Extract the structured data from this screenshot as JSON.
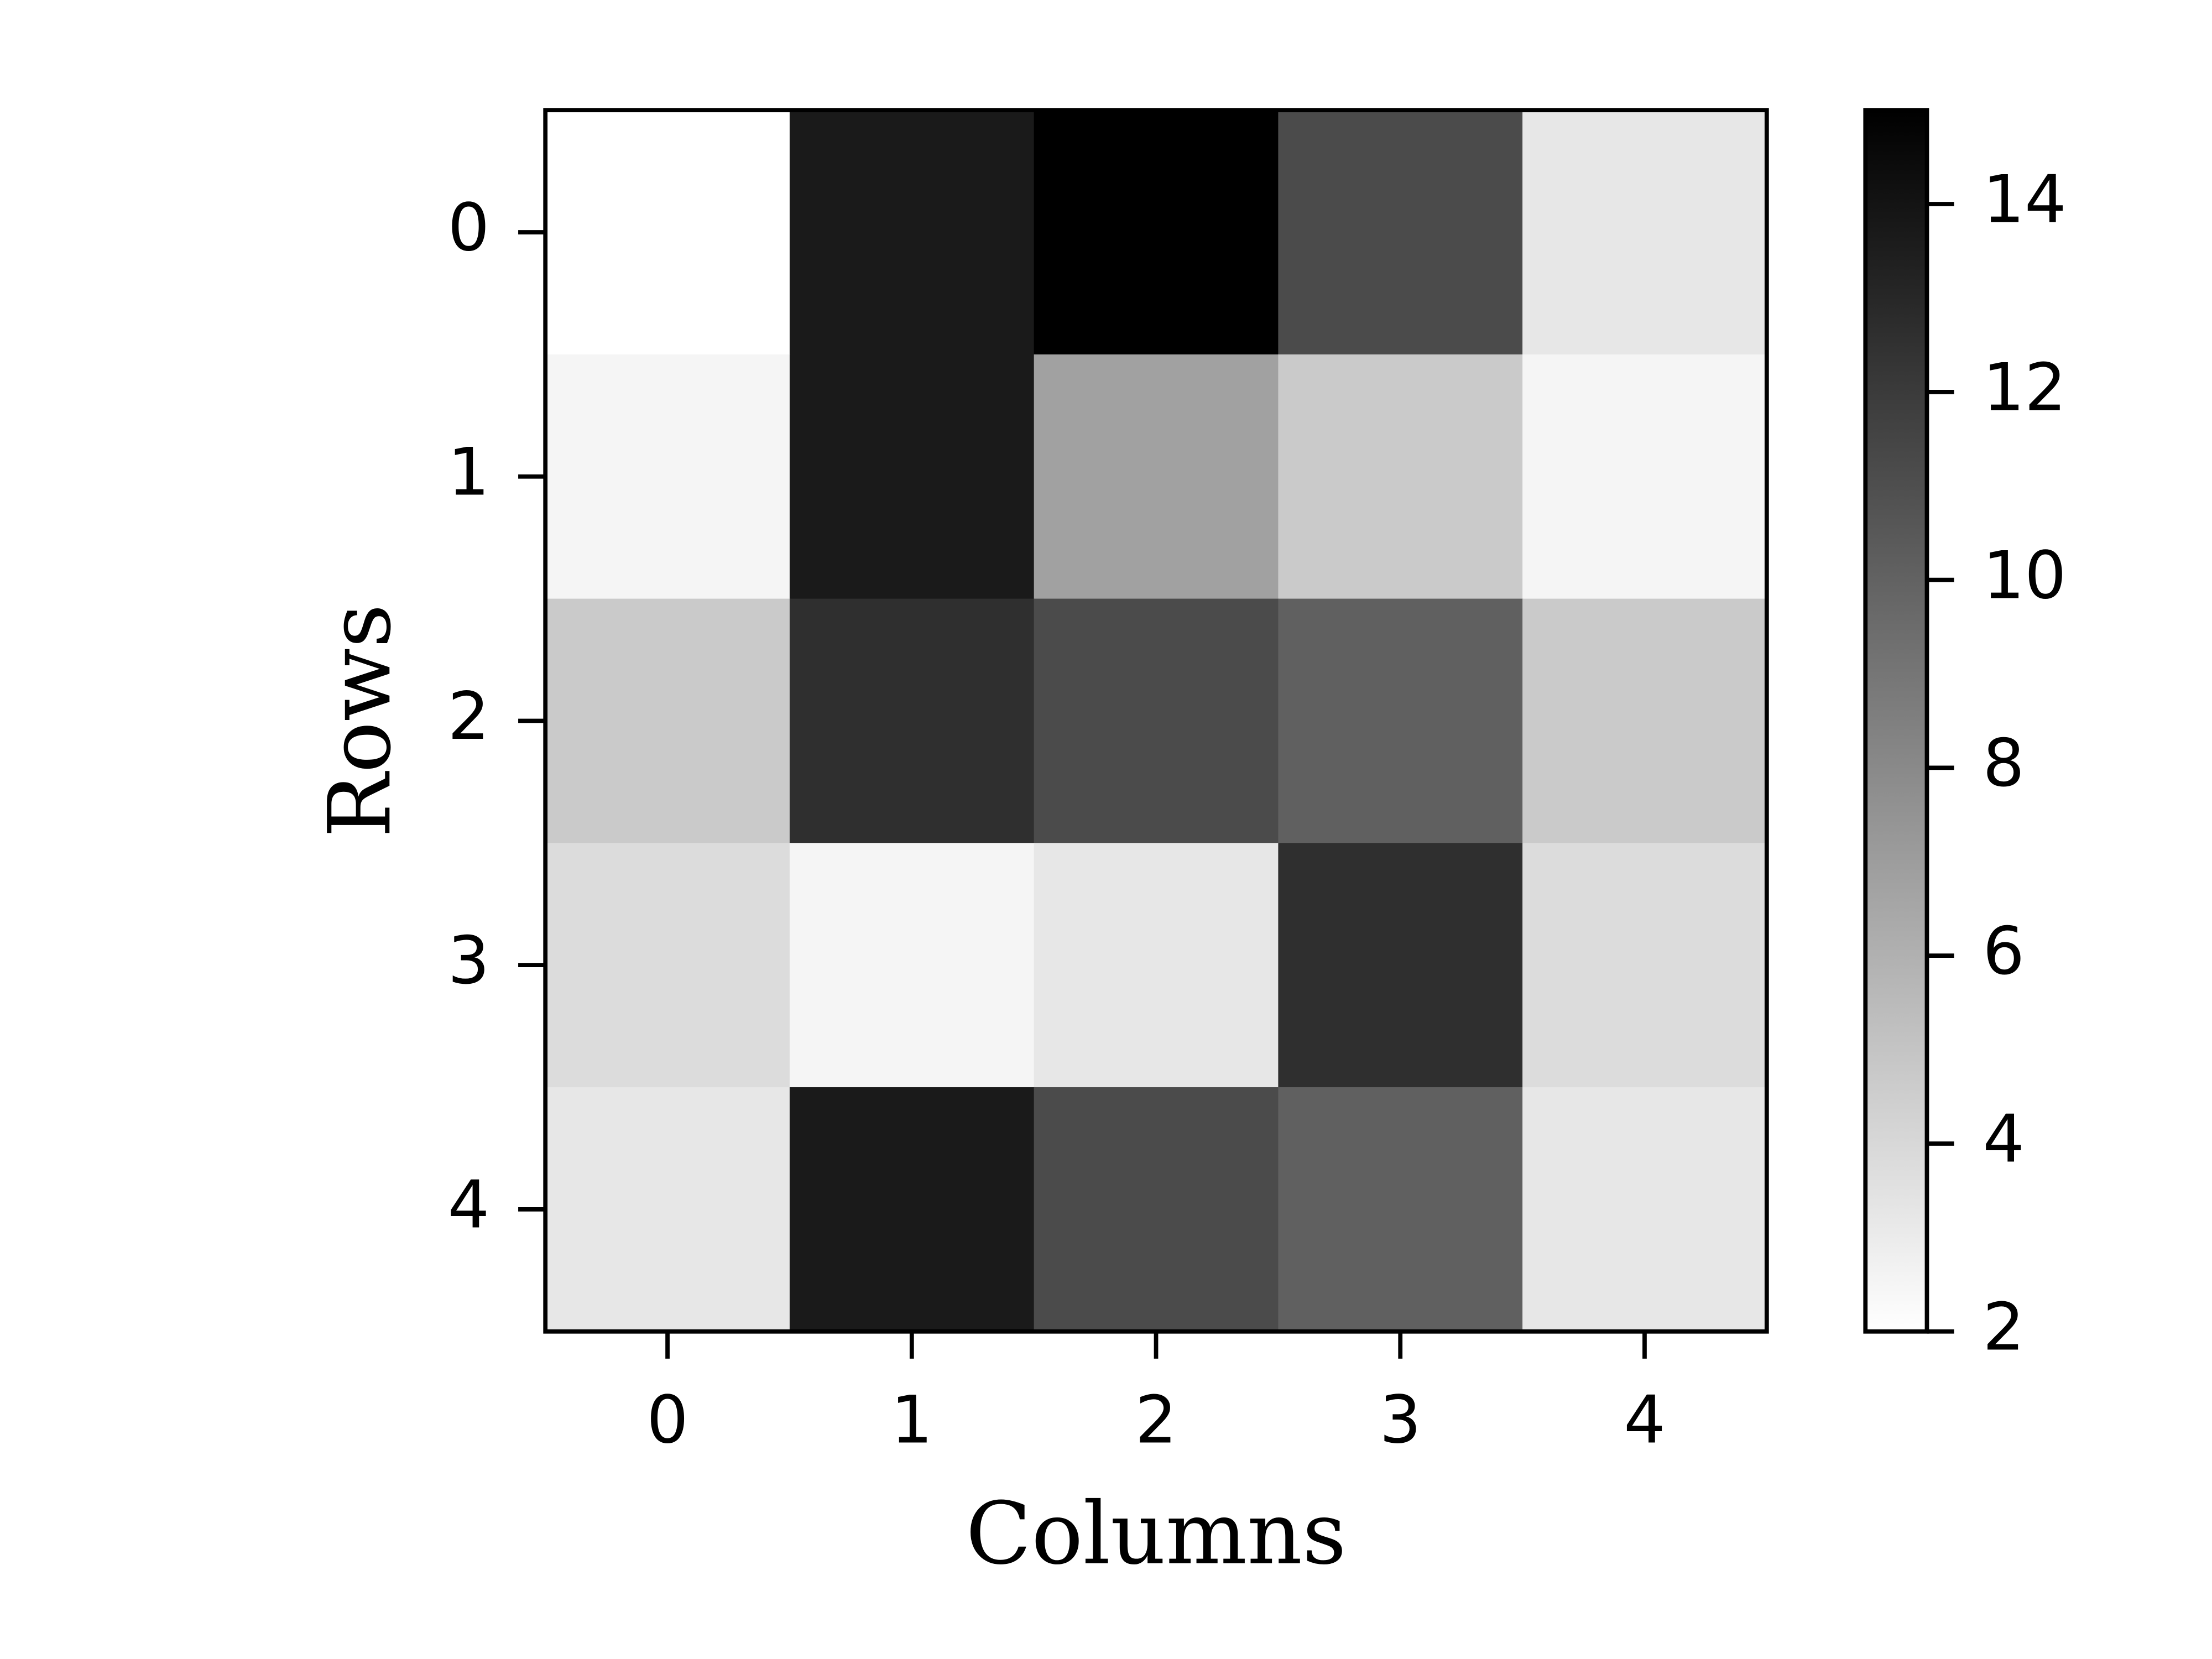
{
  "chart_data": {
    "type": "heatmap",
    "xlabel": "Columns",
    "ylabel": "Rows",
    "columns": [
      0,
      1,
      2,
      3,
      4
    ],
    "rows": [
      0,
      1,
      2,
      3,
      4
    ],
    "values": [
      [
        2,
        13.7,
        15,
        11.2,
        3.2
      ],
      [
        2.5,
        13.7,
        6.8,
        4.7,
        2.5
      ],
      [
        4.7,
        12.6,
        11.2,
        10.1,
        4.7
      ],
      [
        3.8,
        2.5,
        3.2,
        12.6,
        3.8
      ],
      [
        3.2,
        13.7,
        11.2,
        10.1,
        3.2
      ]
    ],
    "colormap": "gray_r",
    "clim": [
      2,
      15
    ],
    "cticks": [
      2,
      4,
      6,
      8,
      10,
      12,
      14
    ]
  }
}
